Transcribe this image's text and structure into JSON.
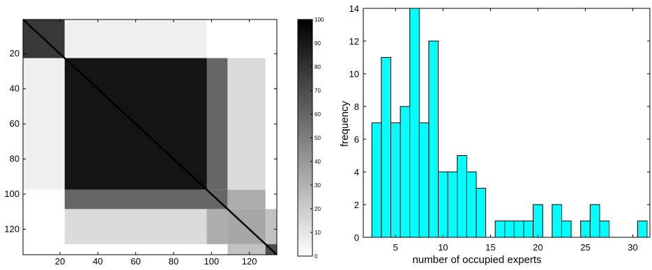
{
  "chart_data": [
    {
      "type": "heatmap",
      "title": "",
      "xlabel": "",
      "ylabel": "",
      "xlim": [
        0.5,
        134.5
      ],
      "ylim": [
        0.5,
        134.5
      ],
      "y_reversed": true,
      "x_ticks": [
        20,
        40,
        60,
        80,
        100,
        120
      ],
      "y_ticks": [
        20,
        40,
        60,
        80,
        100,
        120
      ],
      "colormap": "gray-reversed",
      "low_color": "#ffffff",
      "high_color": "#000000",
      "grid": false,
      "legend": "none",
      "n": 134,
      "clusters": [
        {
          "start": 1,
          "end": 22,
          "value": 78
        },
        {
          "start": 23,
          "end": 97,
          "value": 92
        },
        {
          "start": 98,
          "end": 108,
          "value": 60
        },
        {
          "start": 109,
          "end": 128,
          "value": 35
        },
        {
          "start": 129,
          "end": 134,
          "value": 70
        }
      ],
      "between_clusters": [
        {
          "a": 1,
          "b": 2,
          "value": 6
        },
        {
          "a": 2,
          "b": 3,
          "value": 60
        },
        {
          "a": 2,
          "b": 4,
          "value": 14
        },
        {
          "a": 3,
          "b": 4,
          "value": 32
        },
        {
          "a": 4,
          "b": 5,
          "value": 24
        }
      ],
      "diagonal_value": 100,
      "colorbar": {
        "ticks": [
          0,
          10,
          20,
          30,
          40,
          50,
          60,
          70,
          80,
          90,
          100
        ],
        "range": [
          0,
          100
        ],
        "location": "right"
      }
    },
    {
      "type": "bar",
      "title": "",
      "xlabel": "number of occupied experts",
      "ylabel": "frequency",
      "x": [
        3,
        4,
        5,
        6,
        7,
        8,
        9,
        10,
        11,
        12,
        13,
        14,
        15,
        16,
        17,
        18,
        19,
        20,
        21,
        22,
        23,
        24,
        25,
        26,
        27,
        28,
        29,
        30,
        31
      ],
      "values": [
        7,
        11,
        7,
        8,
        14,
        7,
        12,
        4,
        4,
        5,
        4,
        3,
        0,
        1,
        1,
        1,
        1,
        2,
        0,
        2,
        1,
        0,
        1,
        2,
        1,
        0,
        0,
        0,
        1
      ],
      "bar_width": 1,
      "bar_color": "#00ffff",
      "edge_color": "#000000",
      "xlim": [
        1.6,
        31.8
      ],
      "ylim": [
        0,
        14
      ],
      "x_ticks": [
        5,
        10,
        15,
        20,
        25,
        30
      ],
      "y_ticks": [
        0,
        2,
        4,
        6,
        8,
        10,
        12,
        14
      ],
      "grid": false,
      "legend": "none"
    }
  ]
}
